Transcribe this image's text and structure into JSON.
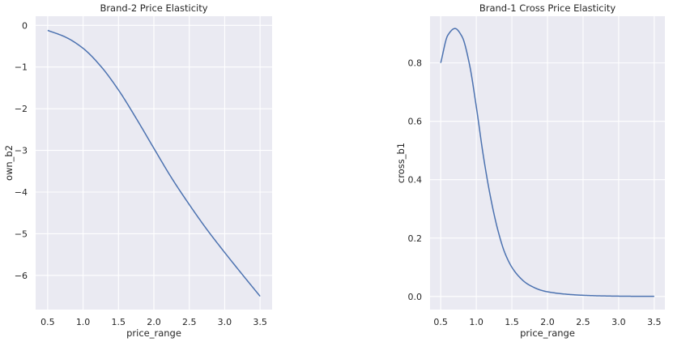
{
  "chart_data": [
    {
      "type": "line",
      "title": "Brand-2 Price Elasticity",
      "xlabel": "price_range",
      "ylabel": "own_b2",
      "xlim": [
        0.33,
        3.67
      ],
      "ylim": [
        -6.82,
        0.22
      ],
      "xticks": [
        0.5,
        1.0,
        1.5,
        2.0,
        2.5,
        3.0,
        3.5
      ],
      "yticks": [
        0,
        -1,
        -2,
        -3,
        -4,
        -5,
        -6
      ],
      "xtick_labels": [
        "0.5",
        "1.0",
        "1.5",
        "2.0",
        "2.5",
        "3.0",
        "3.5"
      ],
      "ytick_labels": [
        "0",
        "−1",
        "−2",
        "−3",
        "−4",
        "−5",
        "−6"
      ],
      "grid": true,
      "color": "#4c72b0",
      "series": [
        {
          "x": [
            0.5,
            0.75,
            1.0,
            1.25,
            1.5,
            1.75,
            2.0,
            2.25,
            2.5,
            2.75,
            3.0,
            3.25,
            3.5
          ],
          "values": [
            -0.12,
            -0.28,
            -0.55,
            -0.98,
            -1.55,
            -2.23,
            -2.95,
            -3.66,
            -4.3,
            -4.9,
            -5.45,
            -5.98,
            -6.5
          ]
        }
      ]
    },
    {
      "type": "line",
      "title": "Brand-1 Cross Price Elasticity",
      "xlabel": "price_range",
      "ylabel": "cross_b1",
      "xlim": [
        0.35,
        3.65
      ],
      "ylim": [
        -0.045,
        0.96
      ],
      "xticks": [
        0.5,
        1.0,
        1.5,
        2.0,
        2.5,
        3.0,
        3.5
      ],
      "yticks": [
        0.0,
        0.2,
        0.4,
        0.6,
        0.8
      ],
      "xtick_labels": [
        "0.5",
        "1.0",
        "1.5",
        "2.0",
        "2.5",
        "3.0",
        "3.5"
      ],
      "ytick_labels": [
        "0.0",
        "0.2",
        "0.4",
        "0.6",
        "0.8"
      ],
      "grid": true,
      "color": "#4c72b0",
      "series": [
        {
          "x": [
            0.5,
            0.6,
            0.7,
            0.8,
            0.9,
            1.0,
            1.1,
            1.2,
            1.3,
            1.4,
            1.5,
            1.6,
            1.7,
            1.8,
            1.9,
            2.0,
            2.25,
            2.5,
            2.75,
            3.0,
            3.25,
            3.5
          ],
          "values": [
            0.8,
            0.895,
            0.918,
            0.89,
            0.8,
            0.65,
            0.48,
            0.34,
            0.23,
            0.15,
            0.1,
            0.068,
            0.046,
            0.032,
            0.022,
            0.016,
            0.008,
            0.004,
            0.002,
            0.001,
            0.0005,
            0.0003
          ]
        }
      ]
    }
  ]
}
